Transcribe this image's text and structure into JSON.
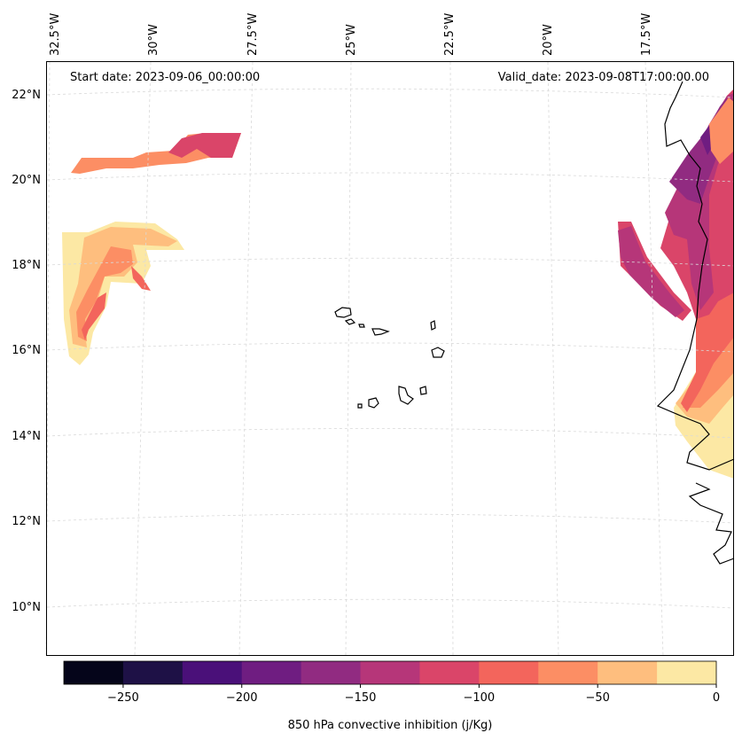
{
  "chart_data": {
    "type": "map",
    "title_left": "Start date: 2023-09-06_00:00:00",
    "title_right": "Valid_date: 2023-09-08T17:00:00.00",
    "longitude_labels": [
      "32.5°W",
      "30°W",
      "27.5°W",
      "25°W",
      "22.5°W",
      "20°W",
      "17.5°W"
    ],
    "longitudes": [
      -32.5,
      -30,
      -27.5,
      -25,
      -22.5,
      -20,
      -17.5
    ],
    "latitude_labels": [
      "22°N",
      "20°N",
      "18°N",
      "16°N",
      "14°N",
      "12°N",
      "10°N"
    ],
    "latitudes": [
      22,
      20,
      18,
      16,
      14,
      12,
      10
    ],
    "colorbar": {
      "label": "850 hPa convective inhibition (j/Kg)",
      "levels": [
        -275,
        -250,
        -225,
        -200,
        -175,
        -150,
        -125,
        -100,
        -75,
        -50,
        -25,
        0
      ],
      "tick_values": [
        -250,
        -200,
        -150,
        -100,
        -50,
        0
      ],
      "tick_labels": [
        "−250",
        "−200",
        "−150",
        "−100",
        "−50",
        "0"
      ],
      "colors": [
        "#05051a",
        "#1e1146",
        "#4a1079",
        "#6f1d81",
        "#912b81",
        "#b63679",
        "#da4569",
        "#f3655c",
        "#fc8e64",
        "#febe7e",
        "#fce8a4"
      ]
    },
    "fields": [
      {
        "region": "north Atlantic band near 20-21N",
        "cin_range": [
          -150,
          -50
        ]
      },
      {
        "region": "west area near 16-19N, 30-32W",
        "cin_range": [
          -125,
          0
        ]
      },
      {
        "region": "West African coast 14-22N",
        "cin_range": [
          -175,
          0
        ]
      }
    ]
  }
}
